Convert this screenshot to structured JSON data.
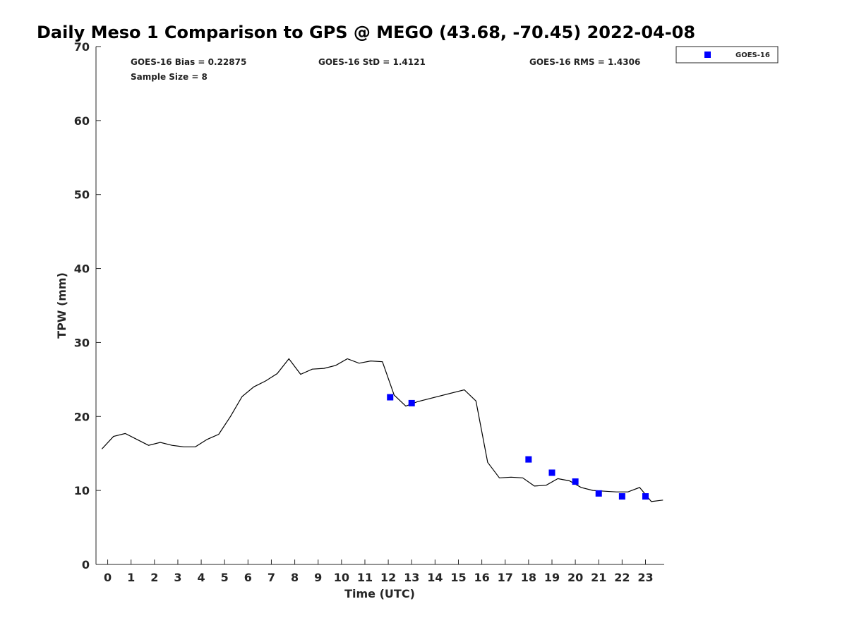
{
  "chart_data": {
    "type": "line",
    "title": "Daily Meso 1 Comparison to GPS @ MEGO (43.68, -70.45) 2022-04-08",
    "xlabel": "Time (UTC)",
    "ylabel": "TPW (mm)",
    "xlim": [
      -0.5,
      23.8
    ],
    "ylim": [
      0,
      70
    ],
    "x_ticks": [
      "0",
      "1",
      "2",
      "3",
      "4",
      "5",
      "6",
      "7",
      "8",
      "9",
      "10",
      "11",
      "12",
      "13",
      "14",
      "15",
      "16",
      "17",
      "18",
      "19",
      "20",
      "21",
      "22",
      "23"
    ],
    "y_ticks": [
      "0",
      "10",
      "20",
      "30",
      "40",
      "50",
      "60",
      "70"
    ],
    "grid": false,
    "legend_position": "top-right",
    "stats": {
      "bias": "GOES-16 Bias = 0.22875",
      "std": "GOES-16 StD = 1.4121",
      "rms": "GOES-16 RMS = 1.4306",
      "sample_size": "Sample Size = 8"
    },
    "series": [
      {
        "style": "line",
        "color": "#000000",
        "points": [
          [
            -0.25,
            15.6
          ],
          [
            0.25,
            17.3
          ],
          [
            0.75,
            17.7
          ],
          [
            1.25,
            16.9
          ],
          [
            1.75,
            16.1
          ],
          [
            2.25,
            16.5
          ],
          [
            2.75,
            16.1
          ],
          [
            3.25,
            15.9
          ],
          [
            3.75,
            15.9
          ],
          [
            4.25,
            16.9
          ],
          [
            4.75,
            17.6
          ],
          [
            5.25,
            20.0
          ],
          [
            5.75,
            22.7
          ],
          [
            6.25,
            24.0
          ],
          [
            6.75,
            24.8
          ],
          [
            7.25,
            25.8
          ],
          [
            7.75,
            27.8
          ],
          [
            8.25,
            25.7
          ],
          [
            8.75,
            26.4
          ],
          [
            9.25,
            26.5
          ],
          [
            9.75,
            26.9
          ],
          [
            10.25,
            27.8
          ],
          [
            10.75,
            27.2
          ],
          [
            11.25,
            27.5
          ],
          [
            11.75,
            27.4
          ],
          [
            12.25,
            22.9
          ],
          [
            12.75,
            21.4
          ],
          [
            13.25,
            22.0
          ],
          [
            15.25,
            23.6
          ],
          [
            15.75,
            22.1
          ],
          [
            16.25,
            13.8
          ],
          [
            16.75,
            11.7
          ],
          [
            17.25,
            11.8
          ],
          [
            17.75,
            11.7
          ],
          [
            18.25,
            10.6
          ],
          [
            18.75,
            10.7
          ],
          [
            19.25,
            11.6
          ],
          [
            19.75,
            11.3
          ],
          [
            20.25,
            10.4
          ],
          [
            20.75,
            10.0
          ],
          [
            21.25,
            9.9
          ],
          [
            21.75,
            9.8
          ],
          [
            22.25,
            9.8
          ],
          [
            22.75,
            10.4
          ],
          [
            23.25,
            8.5
          ],
          [
            23.75,
            8.7
          ]
        ]
      },
      {
        "name": "GOES-16",
        "style": "marker",
        "color": "#0000ff",
        "points": [
          [
            12.08,
            22.6
          ],
          [
            13.0,
            21.8
          ],
          [
            18.0,
            14.2
          ],
          [
            19.0,
            12.4
          ],
          [
            20.0,
            11.2
          ],
          [
            21.0,
            9.6
          ],
          [
            22.0,
            9.2
          ],
          [
            23.0,
            9.2
          ]
        ]
      }
    ]
  }
}
